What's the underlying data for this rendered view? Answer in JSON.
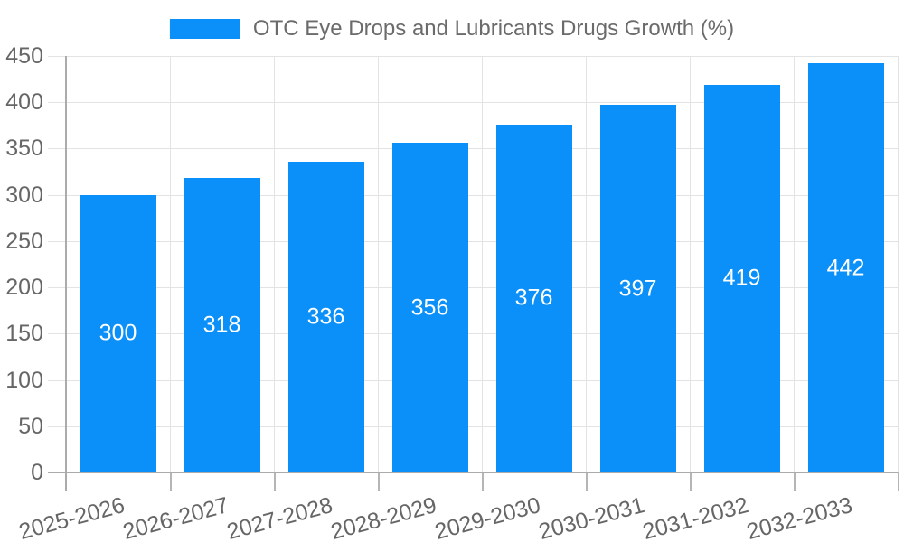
{
  "legend": {
    "label": "OTC Eye Drops and Lubricants Drugs Growth (%)"
  },
  "chart_data": {
    "type": "bar",
    "title": "OTC Eye Drops and Lubricants Drugs Growth (%)",
    "categories": [
      "2025-2026",
      "2026-2027",
      "2027-2028",
      "2028-2029",
      "2029-2030",
      "2030-2031",
      "2031-2032",
      "2032-2033"
    ],
    "values": [
      300,
      318,
      336,
      356,
      376,
      397,
      419,
      442
    ],
    "xlabel": "",
    "ylabel": "",
    "ylim": [
      0,
      450
    ],
    "yticks": [
      0,
      50,
      100,
      150,
      200,
      250,
      300,
      350,
      400,
      450
    ],
    "grid": true,
    "legend_position": "top",
    "value_label_position": "inside-center",
    "x_label_rotation_deg": -15,
    "colors": {
      "bar": "#0a90f8",
      "value_label": "#ffffff",
      "tick_label": "#666666",
      "legend_text": "#6b6b6b",
      "gridline": "#e3e3e3",
      "bottom_tick": "#b5b5b5",
      "axis": "#ababab",
      "background": "#ffffff"
    }
  }
}
